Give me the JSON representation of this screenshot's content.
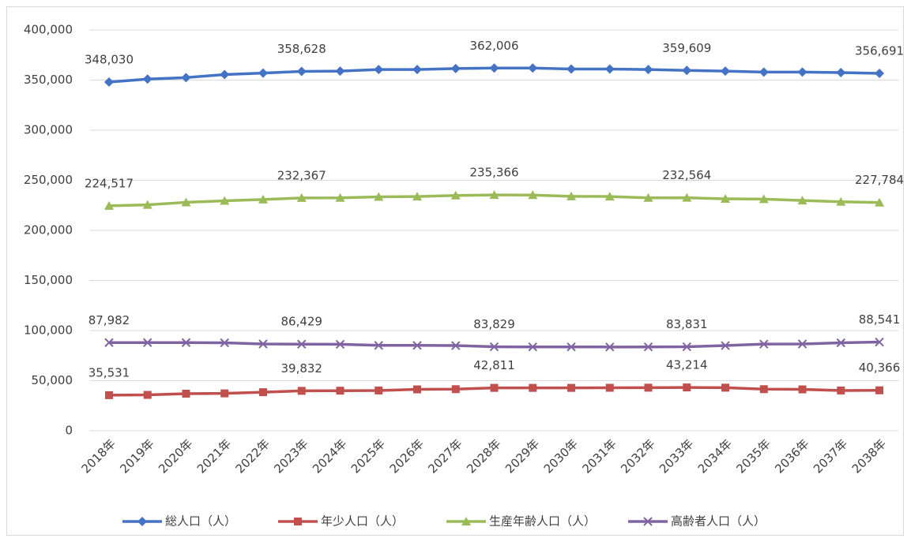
{
  "chart_data": {
    "type": "line",
    "categories": [
      "2018年",
      "2019年",
      "2020年",
      "2021年",
      "2022年",
      "2023年",
      "2024年",
      "2025年",
      "2026年",
      "2027年",
      "2028年",
      "2029年",
      "2030年",
      "2031年",
      "2032年",
      "2033年",
      "2034年",
      "2035年",
      "2036年",
      "2037年",
      "2038年"
    ],
    "series": [
      {
        "name": "総人口（人）",
        "color": "#4472c4",
        "marker": "diamond",
        "values": [
          348030,
          351000,
          352500,
          355500,
          357000,
          358628,
          359000,
          360500,
          360500,
          361500,
          362006,
          362000,
          361000,
          361000,
          360500,
          359609,
          359000,
          358000,
          358000,
          357500,
          356691
        ],
        "value_labels": [
          "348,030",
          null,
          null,
          null,
          null,
          "358,628",
          null,
          null,
          null,
          null,
          "362,006",
          null,
          null,
          null,
          null,
          "359,609",
          null,
          null,
          null,
          null,
          "356,691"
        ]
      },
      {
        "name": "年少人口（人）",
        "color": "#c0504d",
        "marker": "square",
        "values": [
          35531,
          35800,
          37000,
          37300,
          38500,
          39832,
          40000,
          40200,
          41300,
          41500,
          42811,
          42800,
          42800,
          42900,
          43000,
          43214,
          43000,
          41500,
          41300,
          40200,
          40366
        ],
        "value_labels": [
          "35,531",
          null,
          null,
          null,
          null,
          "39,832",
          null,
          null,
          null,
          null,
          "42,811",
          null,
          null,
          null,
          null,
          "43,214",
          null,
          null,
          null,
          null,
          "40,366"
        ]
      },
      {
        "name": "生産年齢人口（人）",
        "color": "#9bbb59",
        "marker": "triangle",
        "values": [
          224517,
          225500,
          228000,
          229500,
          230800,
          232367,
          232500,
          233500,
          233800,
          234800,
          235366,
          235200,
          234000,
          233800,
          232500,
          232564,
          231500,
          231200,
          229800,
          228500,
          227784
        ],
        "value_labels": [
          "224,517",
          null,
          null,
          null,
          null,
          "232,367",
          null,
          null,
          null,
          null,
          "235,366",
          null,
          null,
          null,
          null,
          "232,564",
          null,
          null,
          null,
          null,
          "227,784"
        ]
      },
      {
        "name": "高齢者人口（人）",
        "color": "#8064a2",
        "marker": "x",
        "values": [
          87982,
          88000,
          88000,
          87800,
          86600,
          86429,
          86300,
          85200,
          85200,
          85000,
          83829,
          83700,
          83700,
          83600,
          83700,
          83831,
          85000,
          86500,
          86600,
          87800,
          88541
        ],
        "value_labels": [
          "87,982",
          null,
          null,
          null,
          null,
          "86,429",
          null,
          null,
          null,
          null,
          "83,829",
          null,
          null,
          null,
          null,
          "83,831",
          null,
          null,
          null,
          null,
          "88,541"
        ]
      }
    ],
    "ylim": [
      0,
      400000
    ],
    "yticks": [
      0,
      {
        "value": 50000,
        "label": "50,000"
      },
      {
        "value": 100000,
        "label": "100,000"
      },
      {
        "value": 150000,
        "label": "150,000"
      },
      {
        "value": 200000,
        "label": "200,000"
      },
      {
        "value": 250000,
        "label": "250,000"
      },
      {
        "value": 300000,
        "label": "300,000"
      },
      {
        "value": 350000,
        "label": "350,000"
      },
      {
        "value": 400000,
        "label": "400,000"
      }
    ],
    "grid": true,
    "legend": "bottom"
  }
}
